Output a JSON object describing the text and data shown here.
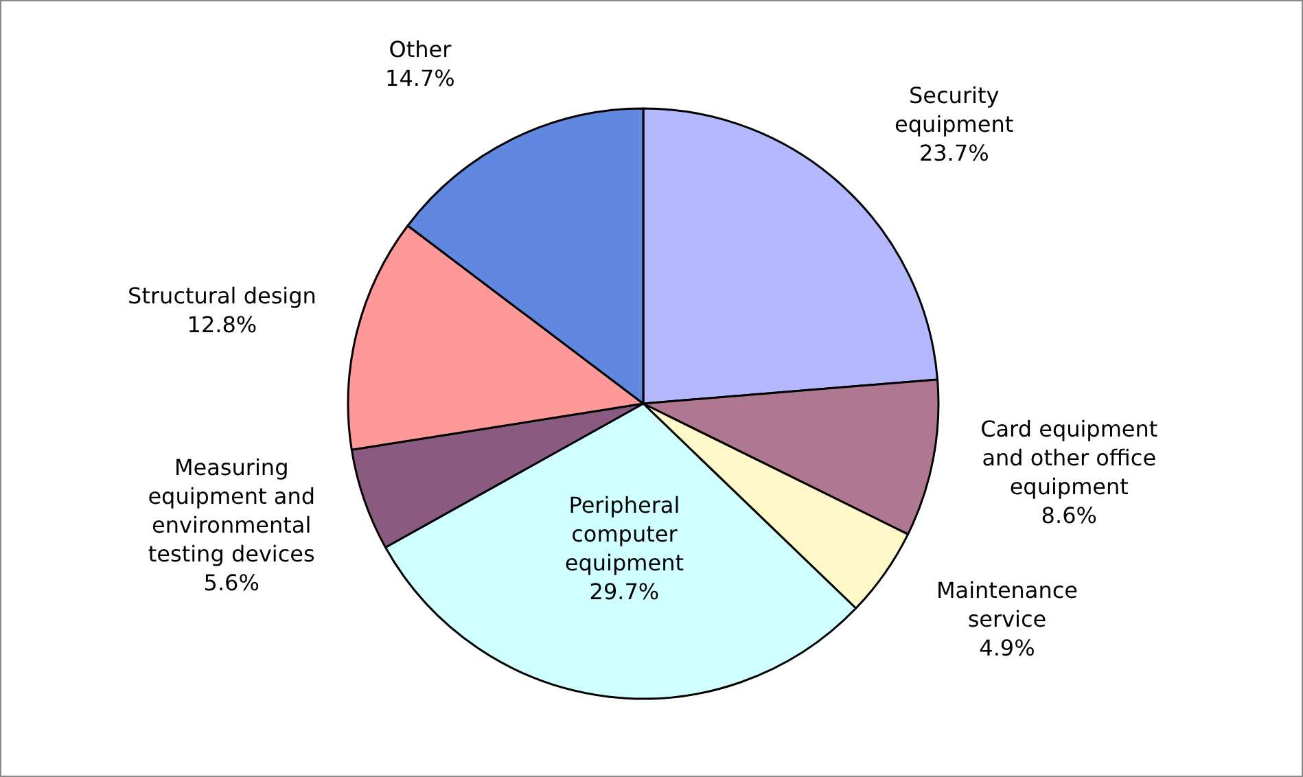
{
  "chart_data": {
    "type": "pie",
    "categories": [
      "Security equipment",
      "Card equipment and other office equipment",
      "Maintenance service",
      "Peripheral computer equipment",
      "Measuring equipment and environmental testing devices",
      "Structural design",
      "Other"
    ],
    "values": [
      23.7,
      8.6,
      4.9,
      29.7,
      5.6,
      12.8,
      14.7
    ],
    "value_labels": [
      "23.7%",
      "8.6%",
      "4.9%",
      "29.7%",
      "5.6%",
      "12.8%",
      "14.7%"
    ],
    "colors": [
      "#b4b8ff",
      "#b07890",
      "#fff8c8",
      "#d0ffff",
      "#8a5a80",
      "#ff9898",
      "#6088e0"
    ],
    "legend": false
  }
}
